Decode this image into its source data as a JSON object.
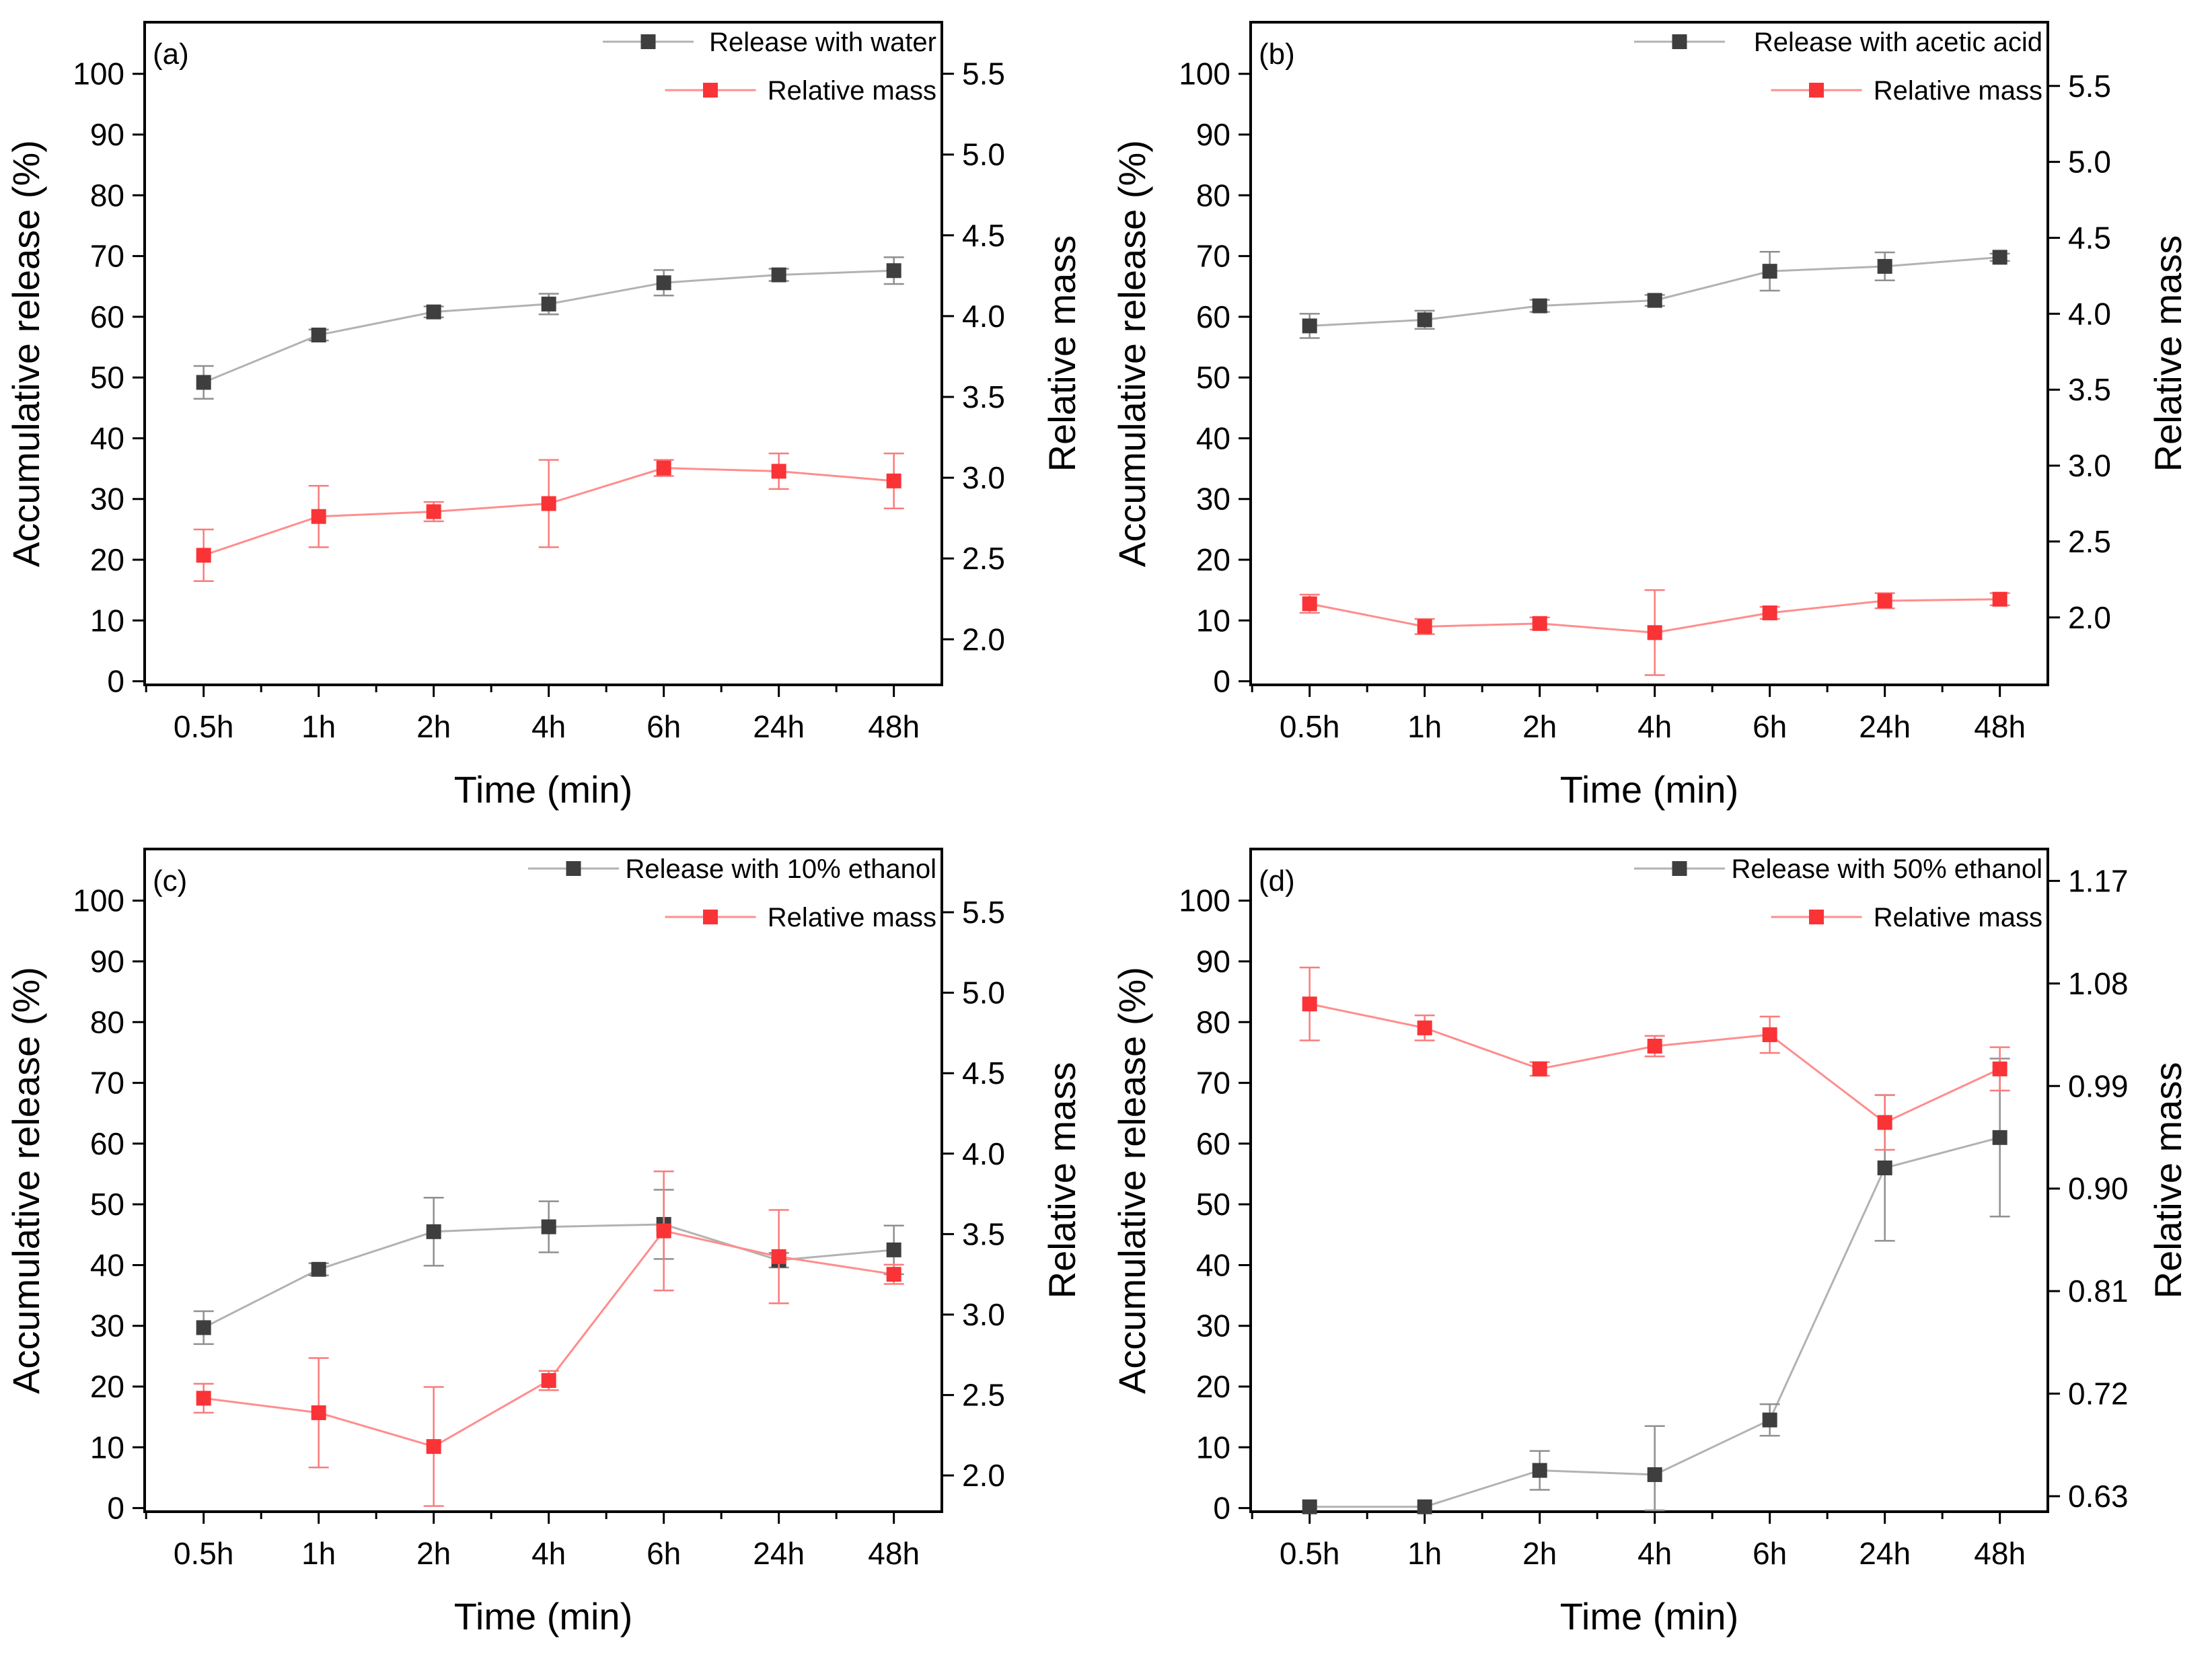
{
  "figure_background": "#ffffff",
  "axis_color": "#000000",
  "chart_data": [
    {
      "panel": "(a)",
      "type": "line",
      "x_categories": [
        "0.5h",
        "1h",
        "2h",
        "4h",
        "6h",
        "24h",
        "48h"
      ],
      "xlabel": "Time (min)",
      "ylabel_left": "Accumulative release (%)",
      "ylabel_right": "Relative mass",
      "left_axis": {
        "min": -0.6,
        "max": 108.5,
        "ticks": [
          0,
          10,
          20,
          30,
          40,
          50,
          60,
          70,
          80,
          90,
          100
        ]
      },
      "right_axis": {
        "min": 1.718,
        "max": 5.819,
        "ticks": [
          2.0,
          2.5,
          3.0,
          3.5,
          4.0,
          4.5,
          5.0,
          5.5
        ],
        "decimals": 1
      },
      "legend_position": "top-right",
      "series": [
        {
          "name": "Release with water",
          "axis": "left",
          "marker_color": "#3e3e3e",
          "line_color": "#b2b2b2",
          "error_color": "#8f8f8f",
          "values": [
            49.2,
            57.0,
            60.8,
            62.1,
            65.6,
            66.9,
            67.6
          ],
          "errors": [
            2.7,
            0.9,
            0.9,
            1.7,
            2.1,
            1.0,
            2.2
          ]
        },
        {
          "name": "Relative mass",
          "axis": "right",
          "marker_color": "#fa3336",
          "line_color": "#ff8d8d",
          "error_color": "#f97b7b",
          "values": [
            2.52,
            2.76,
            2.79,
            2.84,
            3.06,
            3.04,
            2.98
          ],
          "errors": [
            0.16,
            0.19,
            0.06,
            0.27,
            0.05,
            0.11,
            0.17
          ]
        }
      ]
    },
    {
      "panel": "(b)",
      "type": "line",
      "x_categories": [
        "0.5h",
        "1h",
        "2h",
        "4h",
        "6h",
        "24h",
        "48h"
      ],
      "xlabel": "Time (min)",
      "ylabel_left": "Accumulative release (%)",
      "ylabel_right": "Relative mass",
      "left_axis": {
        "min": -0.6,
        "max": 108.5,
        "ticks": [
          0,
          10,
          20,
          30,
          40,
          50,
          60,
          70,
          80,
          90,
          100
        ]
      },
      "right_axis": {
        "min": 1.556,
        "max": 5.92,
        "ticks": [
          2.0,
          2.5,
          3.0,
          3.5,
          4.0,
          4.5,
          5.0,
          5.5
        ],
        "decimals": 1
      },
      "legend_position": "top-right",
      "series": [
        {
          "name": "Release with acetic acid",
          "axis": "left",
          "marker_color": "#3e3e3e",
          "line_color": "#b2b2b2",
          "error_color": "#8f8f8f",
          "values": [
            58.5,
            59.5,
            61.8,
            62.7,
            67.5,
            68.3,
            69.8
          ],
          "errors": [
            2.0,
            1.5,
            1.0,
            0.9,
            3.2,
            2.3,
            0.6
          ]
        },
        {
          "name": "Relative mass",
          "axis": "right",
          "marker_color": "#fa3336",
          "line_color": "#ff8d8d",
          "error_color": "#f97b7b",
          "values": [
            2.09,
            1.94,
            1.96,
            1.9,
            2.03,
            2.11,
            2.12
          ],
          "errors": [
            0.06,
            0.05,
            0.04,
            0.28,
            0.04,
            0.05,
            0.04
          ]
        }
      ]
    },
    {
      "panel": "(c)",
      "type": "line",
      "x_categories": [
        "0.5h",
        "1h",
        "2h",
        "4h",
        "6h",
        "24h",
        "48h"
      ],
      "xlabel": "Time (min)",
      "ylabel_left": "Accumulative release (%)",
      "ylabel_right": "Relative mass",
      "left_axis": {
        "min": -0.6,
        "max": 108.5,
        "ticks": [
          0,
          10,
          20,
          30,
          40,
          50,
          60,
          70,
          80,
          90,
          100
        ]
      },
      "right_axis": {
        "min": 1.775,
        "max": 5.893,
        "ticks": [
          2.0,
          2.5,
          3.0,
          3.5,
          4.0,
          4.5,
          5.0,
          5.5
        ],
        "decimals": 1
      },
      "legend_position": "top-right",
      "series": [
        {
          "name": "Release with 10% ethanol",
          "axis": "left",
          "marker_color": "#3e3e3e",
          "line_color": "#b2b2b2",
          "error_color": "#8f8f8f",
          "values": [
            29.7,
            39.3,
            45.5,
            46.3,
            46.7,
            40.8,
            42.5
          ],
          "errors": [
            2.7,
            1.0,
            5.6,
            4.2,
            5.7,
            1.2,
            4.0
          ]
        },
        {
          "name": "Relative mass",
          "axis": "right",
          "marker_color": "#fa3336",
          "line_color": "#ff8d8d",
          "error_color": "#f97b7b",
          "values": [
            2.48,
            2.39,
            2.18,
            2.59,
            3.52,
            3.36,
            3.25
          ],
          "errors": [
            0.09,
            0.34,
            0.37,
            0.06,
            0.37,
            0.29,
            0.06
          ]
        }
      ]
    },
    {
      "panel": "(d)",
      "type": "line",
      "x_categories": [
        "0.5h",
        "1h",
        "2h",
        "4h",
        "6h",
        "24h",
        "48h"
      ],
      "xlabel": "Time (min)",
      "ylabel_left": "Accumulative release (%)",
      "ylabel_right": "Relative mass",
      "left_axis": {
        "min": -0.6,
        "max": 108.5,
        "ticks": [
          0,
          10,
          20,
          30,
          40,
          50,
          60,
          70,
          80,
          90,
          100
        ]
      },
      "right_axis": {
        "min": 0.6164,
        "max": 1.198,
        "ticks": [
          0.63,
          0.72,
          0.81,
          0.9,
          0.99,
          1.08,
          1.17
        ],
        "decimals": 2
      },
      "legend_position": "top-right",
      "series": [
        {
          "name": "Release with 50% ethanol",
          "axis": "left",
          "marker_color": "#3e3e3e",
          "line_color": "#b2b2b2",
          "error_color": "#8f8f8f",
          "values": [
            0.2,
            0.2,
            6.2,
            5.5,
            14.5,
            56.0,
            61.0
          ],
          "errors": [
            0,
            0,
            3.2,
            8.0,
            2.6,
            12.0,
            13.0
          ]
        },
        {
          "name": "Relative mass",
          "axis": "right",
          "marker_color": "#fa3336",
          "line_color": "#ff8d8d",
          "error_color": "#f97b7b",
          "values": [
            1.062,
            1.041,
            1.005,
            1.025,
            1.035,
            0.958,
            1.005
          ],
          "errors": [
            0.032,
            0.011,
            0.006,
            0.009,
            0.016,
            0.024,
            0.019
          ]
        }
      ]
    }
  ]
}
